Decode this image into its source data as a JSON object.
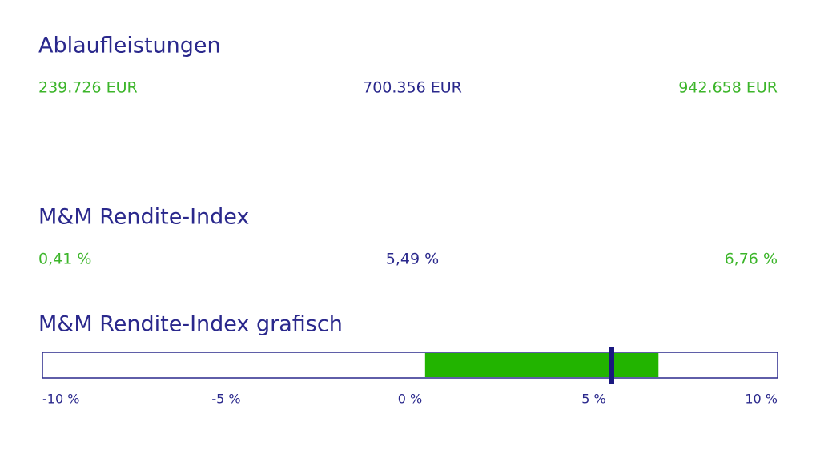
{
  "ablauf": {
    "title": "Ablaufleistungen",
    "values": [
      "239.726 EUR",
      "700.356 EUR",
      "942.658 EUR"
    ]
  },
  "rendite": {
    "title": "M&M Rendite-Index",
    "values": [
      "0,41 %",
      "5,49 %",
      "6,76 %"
    ]
  },
  "grafik": {
    "title": "M&M Rendite-Index grafisch",
    "range": [
      0.41,
      6.76
    ],
    "marker": 5.49,
    "xlim": [
      -10,
      10
    ],
    "xticks": [
      {
        "value": -10,
        "label": "-10 %"
      },
      {
        "value": -5,
        "label": "-5 %"
      },
      {
        "value": 0,
        "label": "0 %"
      },
      {
        "value": 5,
        "label": "5 %"
      },
      {
        "value": 10,
        "label": "10 %"
      }
    ],
    "range_color": "#22b400",
    "marker_color": "#1a1880"
  }
}
